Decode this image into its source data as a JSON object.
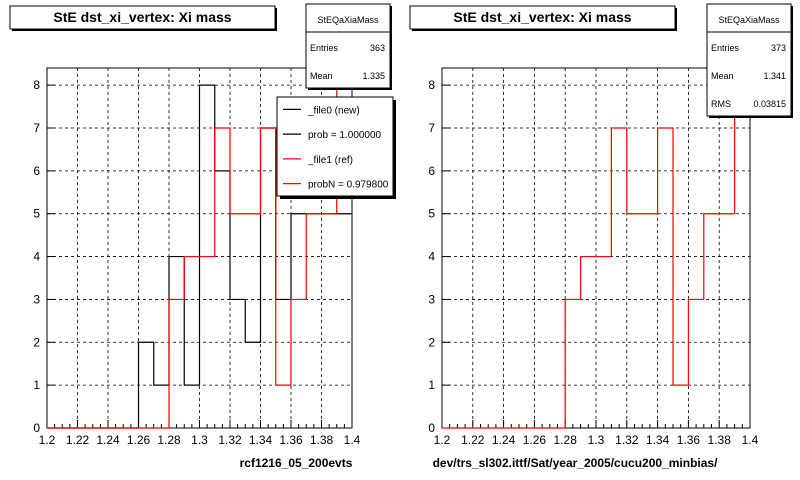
{
  "chart_data": [
    {
      "type": "line",
      "title": "StE dst_xi_vertex: Xi mass",
      "xlabel": "rcf1216_05_200evts",
      "ylabel": "",
      "xlim": [
        1.2,
        1.4
      ],
      "ylim": [
        0,
        8.4
      ],
      "grid": true,
      "xticks": [
        "1.2",
        "1.22",
        "1.24",
        "1.26",
        "1.28",
        "1.3",
        "1.32",
        "1.34",
        "1.36",
        "1.38",
        "1.4"
      ],
      "yticks": [
        "0",
        "1",
        "2",
        "3",
        "4",
        "5",
        "6",
        "7",
        "8"
      ],
      "bin_edges": [
        1.2,
        1.21,
        1.22,
        1.23,
        1.24,
        1.25,
        1.26,
        1.27,
        1.28,
        1.29,
        1.3,
        1.31,
        1.32,
        1.33,
        1.34,
        1.35,
        1.36,
        1.37,
        1.38,
        1.39,
        1.4
      ],
      "series": [
        {
          "name": "_file0 (new)",
          "color": "#000000",
          "values": [
            0,
            0,
            0,
            0,
            0,
            0,
            2,
            1,
            4,
            1,
            8,
            6,
            3,
            2,
            7,
            3,
            5,
            5,
            5,
            5
          ]
        },
        {
          "name": "_file1 (ref)",
          "color": "#ff0000",
          "values": [
            0,
            0,
            0,
            0,
            0,
            0,
            0,
            0,
            3,
            4,
            4,
            7,
            5,
            5,
            7,
            1,
            3,
            5,
            5,
            8
          ]
        }
      ],
      "stats": {
        "title": "StEQaXiaMass",
        "rows": [
          {
            "label": "Entries",
            "value": "363"
          },
          {
            "label": "Mean",
            "value": "1.335"
          }
        ]
      },
      "legend": {
        "placement": "top-right",
        "entries": [
          {
            "text": "_file0 (new)",
            "color": "#000000"
          },
          {
            "text": "prob = 1.000000",
            "color": "#000000"
          },
          {
            "text": "_file1 (ref)",
            "color": "#ff0000"
          },
          {
            "text": "probN = 0.979800",
            "color": "#ff0000"
          }
        ]
      }
    },
    {
      "type": "line",
      "title": "StE dst_xi_vertex: Xi mass",
      "xlabel": "dev/trs_sl302.ittf/Sat/year_2005/cucu200_minbias/",
      "ylabel": "",
      "xlim": [
        1.2,
        1.4
      ],
      "ylim": [
        0,
        8.4
      ],
      "grid": true,
      "xticks": [
        "1.2",
        "1.22",
        "1.24",
        "1.26",
        "1.28",
        "1.3",
        "1.32",
        "1.34",
        "1.36",
        "1.38",
        "1.4"
      ],
      "yticks": [
        "0",
        "1",
        "2",
        "3",
        "4",
        "5",
        "6",
        "7",
        "8"
      ],
      "bin_edges": [
        1.2,
        1.21,
        1.22,
        1.23,
        1.24,
        1.25,
        1.26,
        1.27,
        1.28,
        1.29,
        1.3,
        1.31,
        1.32,
        1.33,
        1.34,
        1.35,
        1.36,
        1.37,
        1.38,
        1.39,
        1.4
      ],
      "series": [
        {
          "color": "#ff0000",
          "values": [
            0,
            0,
            0,
            0,
            0,
            0,
            0,
            0,
            3,
            4,
            4,
            7,
            5,
            5,
            7,
            1,
            3,
            5,
            5,
            8
          ]
        }
      ],
      "stats": {
        "title": "StEQaXiaMass",
        "rows": [
          {
            "label": "Entries",
            "value": "373"
          },
          {
            "label": "Mean",
            "value": "1.341"
          },
          {
            "label": "RMS",
            "value": "0.03815"
          }
        ]
      }
    }
  ]
}
